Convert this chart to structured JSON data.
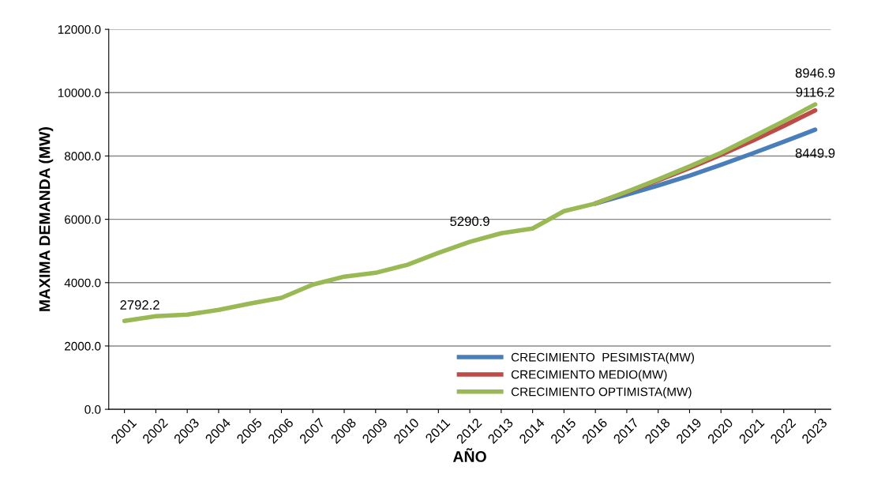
{
  "chart_data": {
    "type": "line",
    "xlabel": "AÑO",
    "ylabel": "MAXIMA DEMANDA (MW)",
    "categories": [
      "2001",
      "2002",
      "2003",
      "2004",
      "2005",
      "2006",
      "2007",
      "2008",
      "2009",
      "2010",
      "2011",
      "2012",
      "2013",
      "2014",
      "2015",
      "2016",
      "2017",
      "2018",
      "2019",
      "2020",
      "2021",
      "2022",
      "2023"
    ],
    "series": [
      {
        "name": "CRECIMIENTO  PESIMISTA(MW)",
        "color": "#4a7ebb",
        "values": [
          null,
          null,
          null,
          null,
          null,
          null,
          null,
          null,
          null,
          null,
          null,
          null,
          null,
          null,
          null,
          6500,
          6780,
          7070,
          7380,
          7720,
          8080,
          8450,
          8830
        ]
      },
      {
        "name": "CRECIMIENTO MEDIO(MW)",
        "color": "#be4b48",
        "values": [
          null,
          null,
          null,
          null,
          null,
          null,
          null,
          null,
          null,
          null,
          null,
          null,
          null,
          null,
          null,
          6500,
          6860,
          7230,
          7620,
          8040,
          8480,
          8950,
          9440
        ]
      },
      {
        "name": "CRECIMIENTO OPTIMISTA(MW)",
        "color": "#98b954",
        "values": [
          2790,
          2940,
          2990,
          3140,
          3340,
          3520,
          3940,
          4190,
          4310,
          4560,
          4940,
          5290,
          5560,
          5710,
          6260,
          6500,
          6870,
          7260,
          7670,
          8100,
          8600,
          9100,
          9630
        ]
      }
    ],
    "ylim": [
      0,
      12000
    ],
    "yticks": [
      {
        "value": 0,
        "label": "0.0"
      },
      {
        "value": 2000,
        "label": "2000.0"
      },
      {
        "value": 4000,
        "label": "4000.0"
      },
      {
        "value": 6000,
        "label": "6000.0"
      },
      {
        "value": 8000,
        "label": "8000.0"
      },
      {
        "value": 10000,
        "label": "10000.0"
      },
      {
        "value": 12000,
        "label": "12000.0"
      }
    ],
    "grid": "y",
    "legend": "bottom right",
    "marker": "none",
    "line_style": "solid",
    "annotations": [
      {
        "text": "2792.2",
        "x": "2001",
        "y": 2790
      },
      {
        "text": "5290.9",
        "x": "2012",
        "y": 5290
      },
      {
        "text": "8946.9",
        "x": "2023",
        "y": 9630
      },
      {
        "text": "9116.2",
        "x": "2023",
        "y": 9440
      },
      {
        "text": "8449.9",
        "x": "2023",
        "y": 8830
      }
    ]
  }
}
